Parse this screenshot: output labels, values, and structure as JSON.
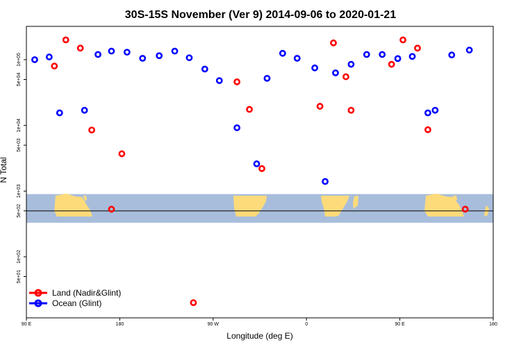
{
  "chart_data": {
    "type": "scatter",
    "title": "30S-15S November (Ver 9)   2014-09-06 to 2020-01-21",
    "xlabel": "Longitude (deg E)",
    "ylabel": "N Total",
    "x_ticks": [
      {
        "value": 90,
        "label": "90 E"
      },
      {
        "value": 180,
        "label": "180"
      },
      {
        "value": 270,
        "label": "90 W"
      },
      {
        "value": 360,
        "label": "0"
      },
      {
        "value": 450,
        "label": "90 E"
      },
      {
        "value": 540,
        "label": "180"
      }
    ],
    "xlim": [
      90,
      540
    ],
    "y_scale": "log",
    "y_ticks": [
      {
        "value": 50,
        "label": "5e+01"
      },
      {
        "value": 100,
        "label": "1e+02"
      },
      {
        "value": 500,
        "label": "5e+02"
      },
      {
        "value": 1000,
        "label": "1e+03"
      },
      {
        "value": 5000,
        "label": "5e+03"
      },
      {
        "value": 10000,
        "label": "1e+04"
      },
      {
        "value": 50000,
        "label": "5e+04"
      },
      {
        "value": 100000,
        "label": "1e+05"
      }
    ],
    "reference_line": 500,
    "map_band": {
      "ymin": 330,
      "ymax": 900
    },
    "series": [
      {
        "name": "Land (Nadir&Glint)",
        "color": "#ff0000",
        "points": [
          [
            117,
            80000
          ],
          [
            128,
            200000
          ],
          [
            142,
            150000
          ],
          [
            153,
            8500
          ],
          [
            172,
            530
          ],
          [
            182,
            3700
          ],
          [
            251,
            20
          ],
          [
            293,
            46000
          ],
          [
            305,
            17500
          ],
          [
            317,
            2200
          ],
          [
            373,
            19500
          ],
          [
            386,
            180000
          ],
          [
            398,
            55000
          ],
          [
            403,
            17000
          ],
          [
            442,
            85000
          ],
          [
            453,
            200000
          ],
          [
            467,
            150000
          ],
          [
            477,
            8600
          ],
          [
            513,
            530
          ]
        ]
      },
      {
        "name": "Ocean (Glint)",
        "color": "#0000ff",
        "points": [
          [
            98,
            100000
          ],
          [
            112,
            110000
          ],
          [
            122,
            15500
          ],
          [
            146,
            17000
          ],
          [
            159,
            120000
          ],
          [
            172,
            135000
          ],
          [
            187,
            130000
          ],
          [
            202,
            105000
          ],
          [
            218,
            115000
          ],
          [
            233,
            135000
          ],
          [
            247,
            107000
          ],
          [
            262,
            72000
          ],
          [
            276,
            48000
          ],
          [
            293,
            9200
          ],
          [
            312,
            2600
          ],
          [
            322,
            52000
          ],
          [
            337,
            125000
          ],
          [
            351,
            105000
          ],
          [
            368,
            75000
          ],
          [
            378,
            1400
          ],
          [
            388,
            63000
          ],
          [
            403,
            85000
          ],
          [
            418,
            120000
          ],
          [
            433,
            120000
          ],
          [
            448,
            104000
          ],
          [
            462,
            112000
          ],
          [
            477,
            15500
          ],
          [
            484,
            17000
          ],
          [
            500,
            118000
          ],
          [
            517,
            140000
          ]
        ]
      }
    ],
    "legend": {
      "position": "bottom-left",
      "entries": [
        "Land (Nadir&Glint)",
        "Ocean (Glint)"
      ]
    }
  }
}
